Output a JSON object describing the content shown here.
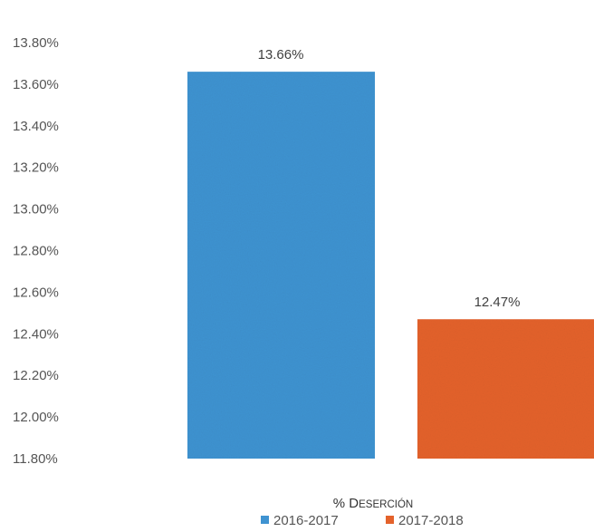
{
  "chart_data": {
    "type": "bar",
    "title": "",
    "xlabel": "% Deserción",
    "ylabel": "",
    "ylim": [
      11.8,
      13.8
    ],
    "yticks": [
      11.8,
      12.0,
      12.2,
      12.4,
      12.6,
      12.8,
      13.0,
      13.2,
      13.4,
      13.6,
      13.8
    ],
    "ytick_labels": [
      "11.80%",
      "12.00%",
      "12.20%",
      "12.40%",
      "12.60%",
      "12.80%",
      "13.00%",
      "13.20%",
      "13.40%",
      "13.60%",
      "13.80%"
    ],
    "grid": false,
    "legend_position": "bottom",
    "series": [
      {
        "name": "2016-2017",
        "value": 13.66,
        "label": "13.66%",
        "color": "#3f93d1"
      },
      {
        "name": "2017-2018",
        "value": 12.47,
        "label": "12.47%",
        "color": "#e4622b"
      }
    ]
  }
}
